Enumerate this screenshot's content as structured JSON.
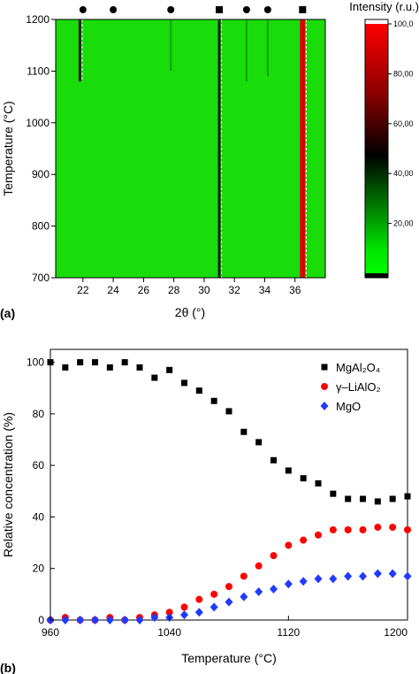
{
  "panel_labels": [
    "(a)",
    "(b)"
  ],
  "chart_data": [
    {
      "panel": "(a)",
      "type": "heatmap",
      "xlabel": "2θ (°)",
      "ylabel": "Temperature (°C)",
      "xlim": [
        20.2,
        38
      ],
      "ylim": [
        700,
        1200
      ],
      "xticks": [
        "22",
        "24",
        "26",
        "28",
        "30",
        "32",
        "34",
        "36"
      ],
      "yticks": [
        "700",
        "800",
        "900",
        "1000",
        "1100",
        "1200"
      ],
      "background_color": "#19dc0a",
      "peaks": [
        {
          "x": 21.8,
          "from": 1080,
          "to": 1200,
          "level": 0.5
        },
        {
          "x": 27.8,
          "from": 1100,
          "to": 1200,
          "level": 0.2
        },
        {
          "x": 31.0,
          "from": 700,
          "to": 1200,
          "level": 0.55
        },
        {
          "x": 32.8,
          "from": 1080,
          "to": 1200,
          "level": 0.3
        },
        {
          "x": 34.2,
          "from": 1090,
          "to": 1200,
          "level": 0.3
        },
        {
          "x": 36.5,
          "from": 700,
          "to": 1200,
          "level": 1.0
        }
      ],
      "phase_markers": [
        {
          "x": 22,
          "marker": "circle"
        },
        {
          "x": 24,
          "marker": "circle"
        },
        {
          "x": 27.8,
          "marker": "circle"
        },
        {
          "x": 31,
          "marker": "square"
        },
        {
          "x": 32.8,
          "marker": "circle"
        },
        {
          "x": 34.2,
          "marker": "circle"
        },
        {
          "x": 36.5,
          "marker": "square"
        }
      ],
      "colorbar": {
        "title": "Intensity (r.u.)",
        "range": [
          0,
          100
        ],
        "ticks": [
          "20,00",
          "40,00",
          "60,00",
          "80,00",
          "100,0"
        ],
        "colors": [
          "#00ff00",
          "#000000",
          "#ff0000"
        ]
      }
    },
    {
      "panel": "(b)",
      "type": "scatter",
      "xlabel": "Temperature (°C)",
      "ylabel": "Relative concentration (%)",
      "xlim": [
        960,
        1200
      ],
      "ylim": [
        0,
        105
      ],
      "xticks": [
        "960",
        "1040",
        "1120",
        "1200"
      ],
      "yticks": [
        "0",
        "20",
        "40",
        "60",
        "80",
        "100"
      ],
      "legend_position": "top-right",
      "x": [
        960,
        970,
        980,
        990,
        1000,
        1010,
        1020,
        1030,
        1040,
        1050,
        1060,
        1070,
        1080,
        1090,
        1100,
        1110,
        1120,
        1130,
        1140,
        1150,
        1160,
        1170,
        1180,
        1190,
        1200
      ],
      "series": [
        {
          "name": "MgAl₂O₄",
          "marker": "square",
          "color": "#000000",
          "values": [
            100,
            98,
            100,
            100,
            98,
            100,
            98,
            94,
            97,
            92,
            89,
            85,
            81,
            73,
            69,
            62,
            58,
            55,
            53,
            49,
            47,
            47,
            46,
            47,
            48
          ]
        },
        {
          "name": "γ–LiAlO₂",
          "marker": "circle",
          "color": "#ff0000",
          "values": [
            0,
            1,
            0,
            0,
            1,
            0,
            1,
            2,
            3,
            5,
            8,
            10,
            13,
            17,
            21,
            25,
            29,
            31,
            33,
            35,
            35,
            35,
            36,
            36,
            35
          ]
        },
        {
          "name": "MgO",
          "marker": "diamond",
          "color": "#1f3bff",
          "values": [
            0,
            0,
            0,
            0,
            0,
            0,
            0,
            1,
            1,
            2,
            3,
            5,
            7,
            9,
            11,
            12,
            14,
            15,
            16,
            16,
            17,
            17,
            18,
            18,
            17
          ]
        }
      ]
    }
  ]
}
